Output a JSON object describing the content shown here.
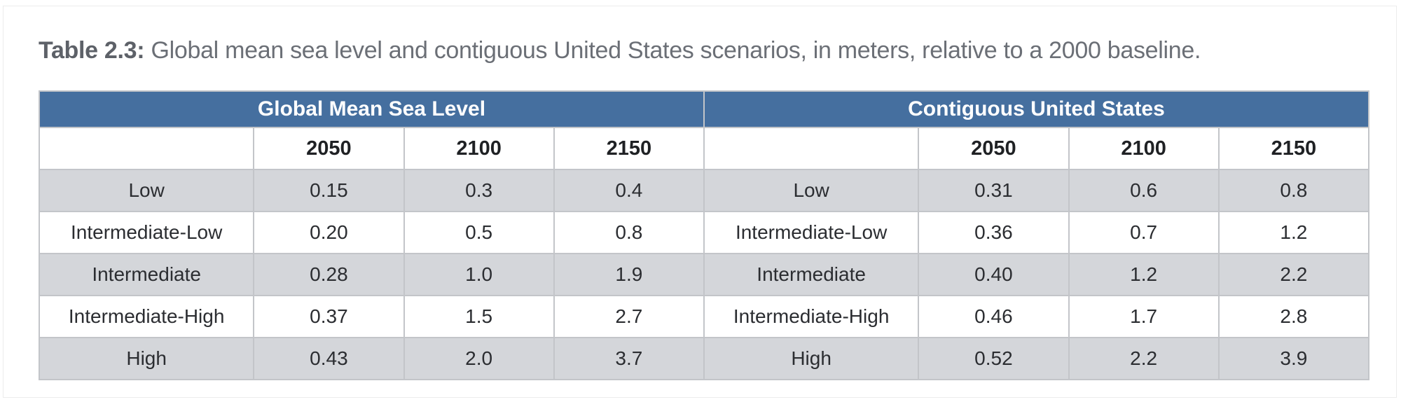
{
  "caption": {
    "label": "Table 2.3:",
    "text": " Global mean sea level and contiguous United States scenarios, in meters, relative to a 2000 baseline."
  },
  "table": {
    "groups": [
      "Global Mean Sea Level",
      "Contiguous United States"
    ],
    "years": [
      "2050",
      "2100",
      "2150"
    ],
    "rows": [
      {
        "scenario": "Low",
        "gmsl": [
          "0.15",
          "0.3",
          "0.4"
        ],
        "conus": [
          "0.31",
          "0.6",
          "0.8"
        ]
      },
      {
        "scenario": "Intermediate-Low",
        "gmsl": [
          "0.20",
          "0.5",
          "0.8"
        ],
        "conus": [
          "0.36",
          "0.7",
          "1.2"
        ]
      },
      {
        "scenario": "Intermediate",
        "gmsl": [
          "0.28",
          "1.0",
          "1.9"
        ],
        "conus": [
          "0.40",
          "1.2",
          "2.2"
        ]
      },
      {
        "scenario": "Intermediate-High",
        "gmsl": [
          "0.37",
          "1.5",
          "2.7"
        ],
        "conus": [
          "0.46",
          "1.7",
          "2.8"
        ]
      },
      {
        "scenario": "High",
        "gmsl": [
          "0.43",
          "2.0",
          "3.7"
        ],
        "conus": [
          "0.52",
          "2.2",
          "3.9"
        ]
      }
    ]
  },
  "colors": {
    "header_blue": "#456f9f",
    "row_shade": "#d4d6da",
    "grid": "#c3c5c9"
  }
}
